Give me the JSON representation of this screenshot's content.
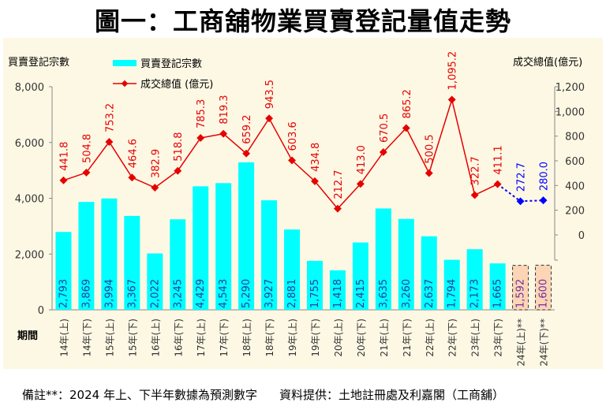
{
  "title": "圖一：工商舖物業買賣登記量值走勢",
  "note": {
    "left": "備註**：2024 年上、下半年數據為預測數字",
    "right": "資料提供：土地註冊處及利嘉閣（工商舖）"
  },
  "colors": {
    "bar": "#00ffff",
    "bar_forecast": "#fbd5b5",
    "line": "#e60000",
    "line_forecast": "#0000ff",
    "bg": "#fdf8e4"
  },
  "chart_data": {
    "type": "bar+line",
    "title": "圖一：工商舖物業買賣登記量值走勢",
    "xlabel": "期間",
    "ylabel_left": "買賣登記宗數",
    "ylabel_right": "成交總值(億元)",
    "ylim_left": [
      0,
      8000
    ],
    "ylim_right": [
      0,
      1200
    ],
    "yticks_left": [
      "0",
      "2,000",
      "4,000",
      "6,000",
      "8,000"
    ],
    "yticks_right": [
      "0",
      "200",
      "400",
      "600",
      "800",
      "1,000",
      "1,200"
    ],
    "legend": [
      "買賣登記宗數",
      "成交總值 (億元)"
    ],
    "legend_position": "top-left",
    "categories": [
      "14年(上)",
      "14年(下)",
      "15年(上)",
      "15年(下)",
      "16年(上)",
      "16年(下)",
      "17年(上)",
      "17年(下)",
      "18年(上)",
      "18年(下)",
      "19年(上)",
      "19年(下)",
      "20年(上)",
      "20年(下)",
      "21年(上)",
      "21年(下)",
      "22年(上)",
      "22年(下)",
      "23年(上)",
      "23年(下)",
      "24年(上)**",
      "24年(下)**"
    ],
    "series": [
      {
        "name": "買賣登記宗數",
        "type": "bar",
        "values": [
          2793,
          3869,
          3994,
          3367,
          2022,
          3245,
          4429,
          4543,
          5290,
          3927,
          2881,
          1755,
          1418,
          2415,
          3635,
          3260,
          2637,
          1794,
          2173,
          1665,
          1592,
          1600
        ],
        "labels": [
          "2,793",
          "3,869",
          "3,994",
          "3,367",
          "2,022",
          "3,245",
          "4,429",
          "4,543",
          "5,290",
          "3,927",
          "2,881",
          "1,755",
          "1,418",
          "2,415",
          "3,635",
          "3,260",
          "2,637",
          "1,794",
          "2,173",
          "1,665",
          "1,592",
          "1,600"
        ]
      },
      {
        "name": "成交總值 (億元)",
        "type": "line",
        "values": [
          441.8,
          504.8,
          753.2,
          464.6,
          382.9,
          518.8,
          785.3,
          819.3,
          659.2,
          943.5,
          603.6,
          434.8,
          212.7,
          413.0,
          670.5,
          865.2,
          500.5,
          1095.2,
          322.7,
          411.1,
          272.7,
          280.0
        ],
        "labels": [
          "441.8",
          "504.8",
          "753.2",
          "464.6",
          "382.9",
          "518.8",
          "785.3",
          "819.3",
          "659.2",
          "943.5",
          "603.6",
          "434.8",
          "212.7",
          "413.0",
          "670.5",
          "865.2",
          "500.5",
          "1,095.2",
          "322.7",
          "411.1",
          "272.7",
          "280.0"
        ]
      }
    ],
    "forecast_count": 2
  }
}
